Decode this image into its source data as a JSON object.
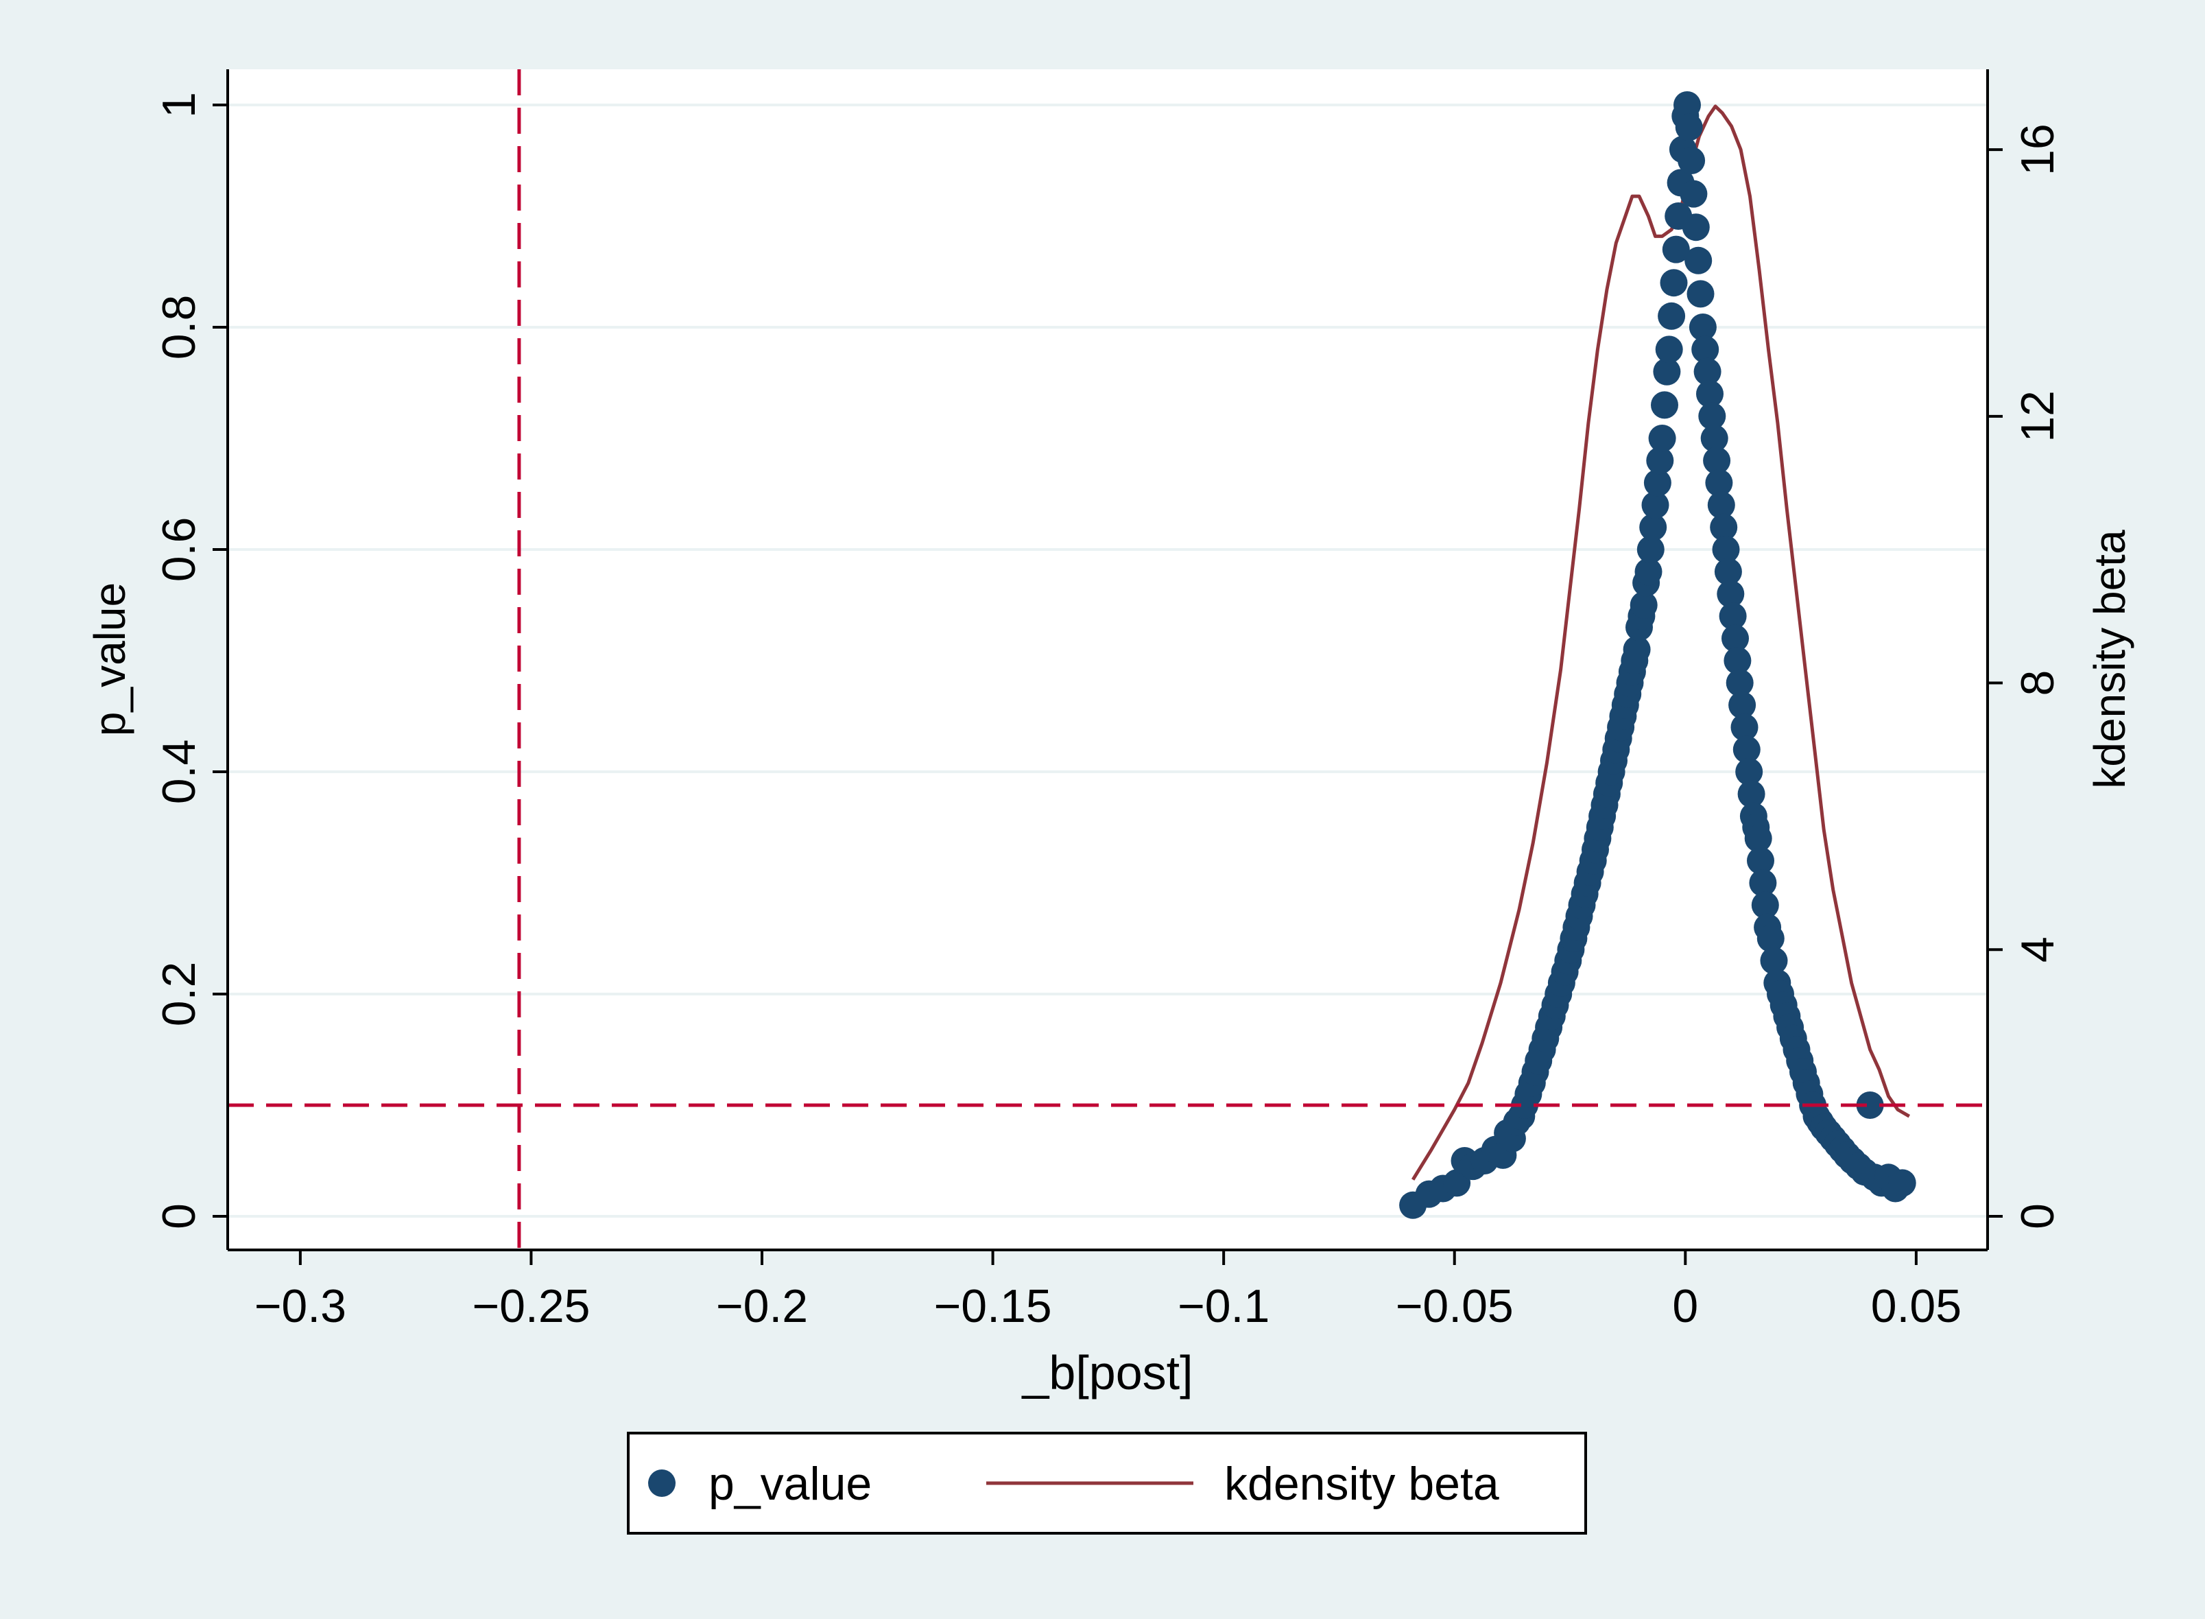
{
  "colors": {
    "outer_background": "#eaf2f3",
    "plot_background": "#ffffff",
    "gridline": "#eaf2f3",
    "axis": "#000000",
    "p_value_marker": "#1a476f",
    "kdensity_line": "#90353b",
    "reference_line": "#c10534"
  },
  "chart_data": {
    "type": "scatter",
    "xlabel": "_b[post]",
    "ylabel_left": "p_value",
    "ylabel_right": "kdensity beta",
    "xlim": [
      -0.308,
      0.057
    ],
    "ylim_left": [
      0,
      1
    ],
    "ylim_right": [
      0,
      16.67
    ],
    "grid": true,
    "x_ticks": [
      -0.3,
      -0.25,
      -0.2,
      -0.15,
      -0.1,
      -0.05,
      0,
      0.05
    ],
    "x_tick_labels": [
      "−0.3",
      "−0.25",
      "−0.2",
      "−0.15",
      "−0.1",
      "−0.05",
      "0",
      "0.05"
    ],
    "y_left_ticks": [
      0,
      0.2,
      0.4,
      0.6,
      0.8,
      1
    ],
    "y_left_tick_labels": [
      "0",
      "0.2",
      "0.4",
      "0.6",
      "0.8",
      "1"
    ],
    "y_right_ticks": [
      0,
      4,
      8,
      12,
      16
    ],
    "y_right_tick_labels": [
      "0",
      "4",
      "8",
      "12",
      "16"
    ],
    "reference_lines": {
      "vertical_x": -0.2526,
      "horizontal_y": 0.1
    },
    "legend": {
      "position": "bottom",
      "entries": [
        "p_value",
        "kdensity beta"
      ]
    },
    "series": [
      {
        "name": "p_value",
        "type": "scatter",
        "axis": "left",
        "points": [
          [
            -0.059,
            0.01
          ],
          [
            -0.0555,
            0.02
          ],
          [
            -0.0525,
            0.025
          ],
          [
            -0.0495,
            0.03
          ],
          [
            -0.0478,
            0.05
          ],
          [
            -0.046,
            0.045
          ],
          [
            -0.0435,
            0.05
          ],
          [
            -0.0412,
            0.06
          ],
          [
            -0.0395,
            0.055
          ],
          [
            -0.0385,
            0.075
          ],
          [
            -0.0375,
            0.07
          ],
          [
            -0.0365,
            0.085
          ],
          [
            -0.0355,
            0.09
          ],
          [
            -0.0348,
            0.1
          ],
          [
            -0.034,
            0.11
          ],
          [
            -0.0332,
            0.12
          ],
          [
            -0.0325,
            0.13
          ],
          [
            -0.0318,
            0.14
          ],
          [
            -0.031,
            0.15
          ],
          [
            -0.0303,
            0.16
          ],
          [
            -0.0296,
            0.17
          ],
          [
            -0.0289,
            0.18
          ],
          [
            -0.0282,
            0.19
          ],
          [
            -0.0275,
            0.2
          ],
          [
            -0.0268,
            0.21
          ],
          [
            -0.0261,
            0.22
          ],
          [
            -0.0254,
            0.23
          ],
          [
            -0.0248,
            0.24
          ],
          [
            -0.0242,
            0.25
          ],
          [
            -0.0236,
            0.26
          ],
          [
            -0.023,
            0.27
          ],
          [
            -0.0224,
            0.28
          ],
          [
            -0.0218,
            0.29
          ],
          [
            -0.0212,
            0.3
          ],
          [
            -0.0206,
            0.31
          ],
          [
            -0.02,
            0.32
          ],
          [
            -0.0195,
            0.33
          ],
          [
            -0.019,
            0.34
          ],
          [
            -0.0185,
            0.35
          ],
          [
            -0.018,
            0.36
          ],
          [
            -0.0175,
            0.37
          ],
          [
            -0.017,
            0.38
          ],
          [
            -0.0165,
            0.39
          ],
          [
            -0.016,
            0.4
          ],
          [
            -0.0155,
            0.41
          ],
          [
            -0.015,
            0.42
          ],
          [
            -0.0145,
            0.43
          ],
          [
            -0.014,
            0.44
          ],
          [
            -0.0135,
            0.45
          ],
          [
            -0.013,
            0.46
          ],
          [
            -0.0125,
            0.47
          ],
          [
            -0.012,
            0.48
          ],
          [
            -0.0115,
            0.49
          ],
          [
            -0.011,
            0.5
          ],
          [
            -0.0105,
            0.51
          ],
          [
            -0.01,
            0.53
          ],
          [
            -0.0095,
            0.54
          ],
          [
            -0.009,
            0.55
          ],
          [
            -0.0085,
            0.57
          ],
          [
            -0.008,
            0.58
          ],
          [
            -0.0075,
            0.6
          ],
          [
            -0.007,
            0.62
          ],
          [
            -0.0065,
            0.64
          ],
          [
            -0.006,
            0.66
          ],
          [
            -0.0055,
            0.68
          ],
          [
            -0.005,
            0.7
          ],
          [
            -0.0045,
            0.73
          ],
          [
            -0.004,
            0.76
          ],
          [
            -0.0035,
            0.78
          ],
          [
            -0.003,
            0.81
          ],
          [
            -0.0025,
            0.84
          ],
          [
            -0.002,
            0.87
          ],
          [
            -0.0015,
            0.9
          ],
          [
            -0.001,
            0.93
          ],
          [
            -0.0005,
            0.96
          ],
          [
            0.0,
            0.99
          ],
          [
            0.0004,
            1.0
          ],
          [
            0.0008,
            0.98
          ],
          [
            0.0013,
            0.95
          ],
          [
            0.0018,
            0.92
          ],
          [
            0.0023,
            0.89
          ],
          [
            0.0028,
            0.86
          ],
          [
            0.0033,
            0.83
          ],
          [
            0.0038,
            0.8
          ],
          [
            0.0043,
            0.78
          ],
          [
            0.0048,
            0.76
          ],
          [
            0.0053,
            0.74
          ],
          [
            0.0058,
            0.72
          ],
          [
            0.0063,
            0.7
          ],
          [
            0.0068,
            0.68
          ],
          [
            0.0073,
            0.66
          ],
          [
            0.0078,
            0.64
          ],
          [
            0.0083,
            0.62
          ],
          [
            0.0088,
            0.6
          ],
          [
            0.0093,
            0.58
          ],
          [
            0.0098,
            0.56
          ],
          [
            0.0103,
            0.54
          ],
          [
            0.0108,
            0.52
          ],
          [
            0.0113,
            0.5
          ],
          [
            0.0118,
            0.48
          ],
          [
            0.0123,
            0.46
          ],
          [
            0.0128,
            0.44
          ],
          [
            0.0133,
            0.42
          ],
          [
            0.0138,
            0.4
          ],
          [
            0.0143,
            0.38
          ],
          [
            0.0148,
            0.36
          ],
          [
            0.0153,
            0.35
          ],
          [
            0.0158,
            0.34
          ],
          [
            0.0163,
            0.32
          ],
          [
            0.0168,
            0.3
          ],
          [
            0.0173,
            0.28
          ],
          [
            0.0178,
            0.26
          ],
          [
            0.0185,
            0.25
          ],
          [
            0.0192,
            0.23
          ],
          [
            0.0199,
            0.21
          ],
          [
            0.0206,
            0.2
          ],
          [
            0.0213,
            0.19
          ],
          [
            0.022,
            0.18
          ],
          [
            0.0227,
            0.17
          ],
          [
            0.0234,
            0.16
          ],
          [
            0.0241,
            0.15
          ],
          [
            0.0248,
            0.14
          ],
          [
            0.0255,
            0.13
          ],
          [
            0.0262,
            0.12
          ],
          [
            0.0269,
            0.11
          ],
          [
            0.0276,
            0.1
          ],
          [
            0.0284,
            0.09
          ],
          [
            0.0292,
            0.085
          ],
          [
            0.03,
            0.08
          ],
          [
            0.031,
            0.075
          ],
          [
            0.032,
            0.07
          ],
          [
            0.033,
            0.065
          ],
          [
            0.034,
            0.06
          ],
          [
            0.035,
            0.055
          ],
          [
            0.0362,
            0.05
          ],
          [
            0.0375,
            0.045
          ],
          [
            0.0388,
            0.04
          ],
          [
            0.04,
            0.1
          ],
          [
            0.041,
            0.035
          ],
          [
            0.0425,
            0.03
          ],
          [
            0.044,
            0.035
          ],
          [
            0.0455,
            0.025
          ],
          [
            0.047,
            0.03
          ]
        ]
      },
      {
        "name": "kdensity beta",
        "type": "line",
        "axis": "right",
        "points": [
          [
            -0.059,
            0.55
          ],
          [
            -0.055,
            1.0
          ],
          [
            -0.05,
            1.6
          ],
          [
            -0.047,
            2.0
          ],
          [
            -0.044,
            2.6
          ],
          [
            -0.04,
            3.5
          ],
          [
            -0.036,
            4.6
          ],
          [
            -0.033,
            5.6
          ],
          [
            -0.03,
            6.8
          ],
          [
            -0.027,
            8.2
          ],
          [
            -0.025,
            9.4
          ],
          [
            -0.023,
            10.6
          ],
          [
            -0.021,
            11.9
          ],
          [
            -0.019,
            13.0
          ],
          [
            -0.017,
            13.9
          ],
          [
            -0.015,
            14.6
          ],
          [
            -0.013,
            15.0
          ],
          [
            -0.0115,
            15.3
          ],
          [
            -0.01,
            15.3
          ],
          [
            -0.008,
            15.0
          ],
          [
            -0.0065,
            14.7
          ],
          [
            -0.005,
            14.7
          ],
          [
            -0.003,
            14.8
          ],
          [
            -0.001,
            15.1
          ],
          [
            0.001,
            15.7
          ],
          [
            0.003,
            16.2
          ],
          [
            0.005,
            16.5
          ],
          [
            0.0065,
            16.65
          ],
          [
            0.008,
            16.55
          ],
          [
            0.01,
            16.35
          ],
          [
            0.012,
            16.0
          ],
          [
            0.014,
            15.3
          ],
          [
            0.016,
            14.2
          ],
          [
            0.018,
            13.0
          ],
          [
            0.02,
            11.9
          ],
          [
            0.022,
            10.6
          ],
          [
            0.024,
            9.4
          ],
          [
            0.026,
            8.2
          ],
          [
            0.028,
            7.0
          ],
          [
            0.03,
            5.8
          ],
          [
            0.032,
            4.9
          ],
          [
            0.034,
            4.2
          ],
          [
            0.036,
            3.5
          ],
          [
            0.038,
            3.0
          ],
          [
            0.04,
            2.5
          ],
          [
            0.042,
            2.2
          ],
          [
            0.044,
            1.8
          ],
          [
            0.046,
            1.6
          ],
          [
            0.0485,
            1.5
          ]
        ]
      }
    ]
  }
}
